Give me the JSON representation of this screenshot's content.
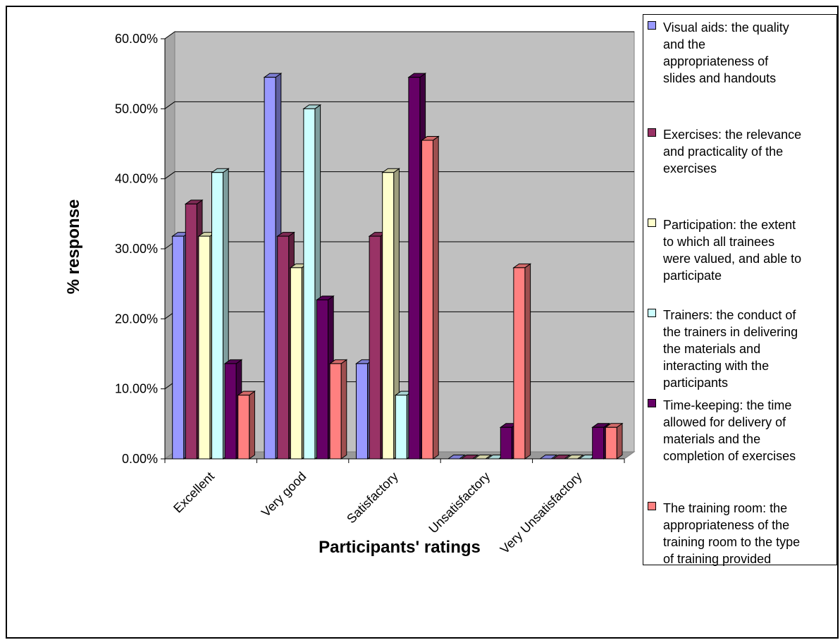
{
  "chart_data": {
    "type": "bar",
    "title": "",
    "xlabel": "Participants' ratings",
    "ylabel": "% response",
    "ylim": [
      0,
      0.6
    ],
    "y_ticks": [
      "0.00%",
      "10.00%",
      "20.00%",
      "30.00%",
      "40.00%",
      "50.00%",
      "60.00%"
    ],
    "categories": [
      "Excellent",
      "Very good",
      "Satisfactory",
      "Unsatisfactory",
      "Very Unsatisfactory"
    ],
    "grid": true,
    "legend_position": "right",
    "series": [
      {
        "name": "Visual aids: the quality and the appropriateness of slides and handouts",
        "color": "#9999ff",
        "values": [
          0.318,
          0.545,
          0.136,
          0.0,
          0.0
        ]
      },
      {
        "name": "Exercises: the relevance and practicality of the exercises",
        "color": "#993366",
        "values": [
          0.364,
          0.318,
          0.318,
          0.0,
          0.0
        ]
      },
      {
        "name": "Participation: the extent to which all trainees were valued, and able to participate",
        "color": "#ffffcc",
        "values": [
          0.318,
          0.273,
          0.409,
          0.0,
          0.0
        ]
      },
      {
        "name": "Trainers: the conduct of the trainers in delivering the materials and interacting with the participants",
        "color": "#ccffff",
        "values": [
          0.409,
          0.5,
          0.091,
          0.0,
          0.0
        ]
      },
      {
        "name": "Time-keeping: the time allowed for delivery of materials and the completion of exercises",
        "color": "#660066",
        "values": [
          0.136,
          0.227,
          0.545,
          0.045,
          0.045
        ]
      },
      {
        "name": "The training room: the appropriateness of the training room to the type of training provided",
        "color": "#ff8080",
        "values": [
          0.091,
          0.136,
          0.455,
          0.273,
          0.045
        ]
      }
    ]
  },
  "legend": {
    "items": [
      {
        "lines": [
          "Visual aids: the quality",
          "and the",
          "appropriateness of",
          "slides and handouts"
        ]
      },
      {
        "lines": [
          "Exercises: the relevance",
          "and practicality of the",
          "exercises"
        ]
      },
      {
        "lines": [
          "Participation: the extent",
          "to which all trainees",
          "were valued, and able to",
          "participate"
        ]
      },
      {
        "lines": [
          "Trainers: the conduct of",
          "the trainers in delivering",
          "the materials and",
          "interacting with the",
          "participants"
        ]
      },
      {
        "lines": [
          "Time-keeping: the time",
          "allowed for delivery of",
          "materials and the",
          "completion of exercises"
        ]
      },
      {
        "lines": [
          "The training room: the",
          "appropriateness of the",
          "training room to the type",
          "of training provided"
        ]
      }
    ]
  }
}
